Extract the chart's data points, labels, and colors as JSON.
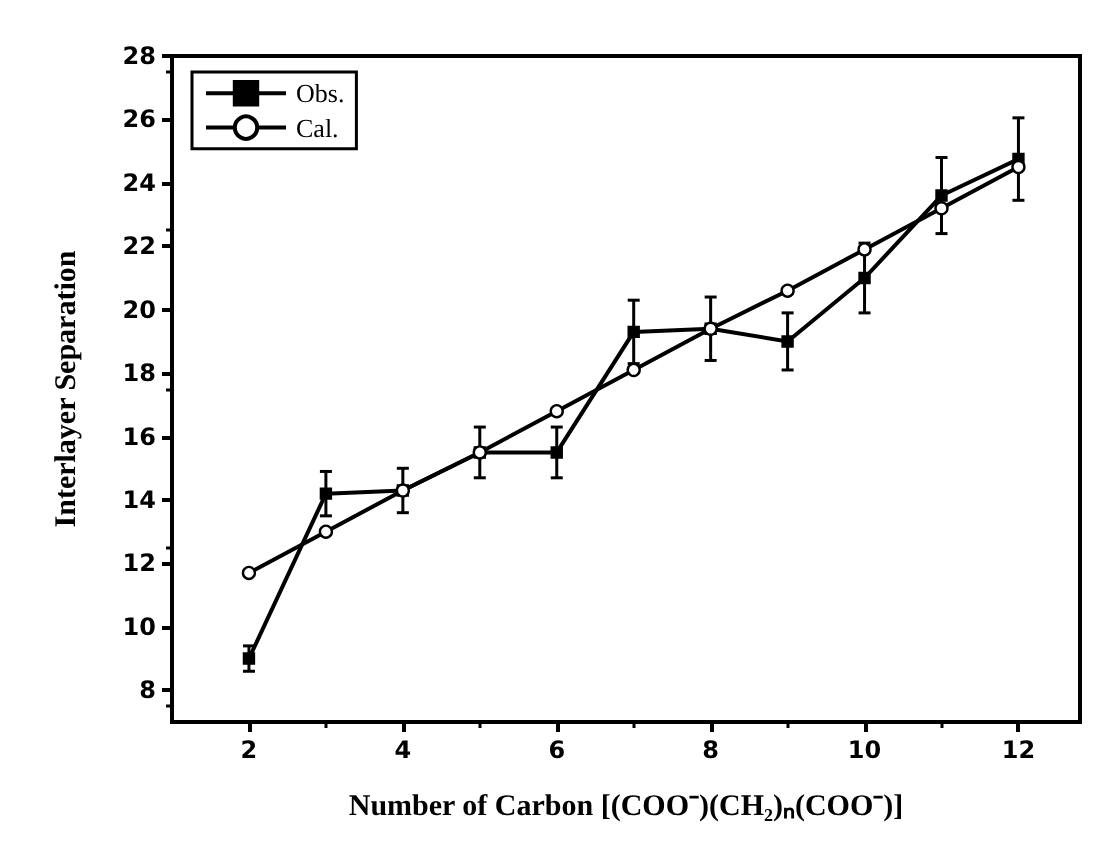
{
  "chart_data": {
    "type": "line",
    "xlabel": "Number of Carbon [(COO⁻)(CH₂)ₙ(COO⁻)]",
    "ylabel": "Interlayer Separation",
    "x": [
      2,
      3,
      4,
      5,
      6,
      7,
      8,
      9,
      10,
      11,
      12
    ],
    "series": [
      {
        "name": "Obs.",
        "color": "#000000",
        "marker": "square",
        "values": [
          9.0,
          14.2,
          14.3,
          15.5,
          15.5,
          19.3,
          19.4,
          19.0,
          21.0,
          23.6,
          24.75
        ],
        "errors": [
          0.4,
          0.7,
          0.7,
          0.8,
          0.8,
          1.0,
          1.0,
          0.9,
          1.1,
          1.2,
          1.3
        ]
      },
      {
        "name": "Cal.",
        "color": "#000000",
        "marker": "circle",
        "values": [
          11.7,
          13.0,
          14.3,
          15.5,
          16.8,
          18.1,
          19.4,
          20.6,
          21.9,
          23.2,
          24.5
        ]
      }
    ],
    "xlim": [
      1,
      12.8
    ],
    "xticks": [
      2,
      4,
      6,
      8,
      10,
      12
    ],
    "ylim": [
      7,
      28
    ],
    "yticks": [
      8,
      10,
      12,
      14,
      16,
      18,
      20,
      22,
      24,
      26,
      28
    ],
    "grid": false,
    "legend": "top left",
    "line_style": "solid"
  }
}
